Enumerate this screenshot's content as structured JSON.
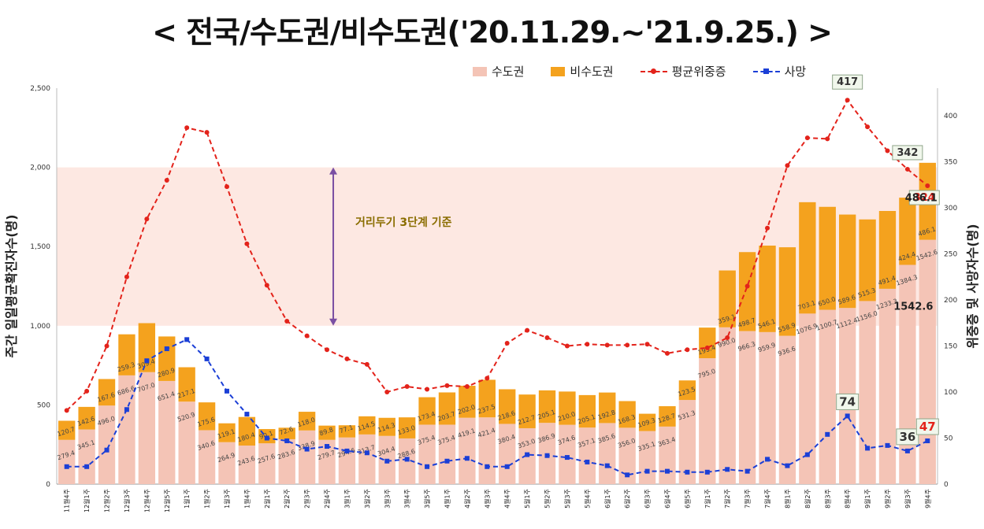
{
  "title": "< 전국/수도권/비수도권('20.11.29.~'21.9.25.) >",
  "colors": {
    "capital": "#f4c4b6",
    "noncapital": "#f4a21e",
    "severe": "#e3231b",
    "death": "#1b3fd6",
    "band": "#fde8e2",
    "arrow": "#7a4fa3",
    "annot": "#8a6d00"
  },
  "chart_data": {
    "type": "bar",
    "ylabel": "주간 일일평균확진자수(명)",
    "y2label": "위중증 및 사망자수(명)",
    "ylim": [
      0,
      2500
    ],
    "y_ticks": [
      "0",
      "500",
      "1,000",
      "1,500",
      "2,000",
      "2,500"
    ],
    "y2lim": [
      0,
      430
    ],
    "y2_ticks": [
      "0",
      "50",
      "100",
      "150",
      "200",
      "250",
      "300",
      "350",
      "400"
    ],
    "categories": [
      "11월4주",
      "12월1주",
      "12월2주",
      "12월3주",
      "12월4주",
      "12월5주",
      "1월1주",
      "1월2주",
      "1월3주",
      "1월4주",
      "2월1주",
      "2월2주",
      "2월3주",
      "2월4주",
      "3월1주",
      "3월2주",
      "3월3주",
      "3월4주",
      "3월5주",
      "4월1주",
      "4월2주",
      "4월3주",
      "4월4주",
      "5월1주",
      "5월2주",
      "5월3주",
      "5월4주",
      "6월1주",
      "6월2주",
      "6월3주",
      "6월4주",
      "6월5주",
      "7월1주",
      "7월2주",
      "7월3주",
      "7월4주",
      "8월1주",
      "8월2주",
      "8월3주",
      "8월4주",
      "9월1주",
      "9월2주",
      "9월3주",
      "9월4주"
    ],
    "series": [
      {
        "name": "수도권",
        "values": [
          279.4,
          345.1,
          496.0,
          686.6,
          707.0,
          651.4,
          520.9,
          340.6,
          264.9,
          243.6,
          257.6,
          283.6,
          338.9,
          279.7,
          294.6,
          313.7,
          304.4,
          288.6,
          375.4,
          375.4,
          419.1,
          421.4,
          380.4,
          353.0,
          386.9,
          374.6,
          357.1,
          385.6,
          356.0,
          335.1,
          363.4,
          531.3,
          795.0,
          990.0,
          966.3,
          959.9,
          936.6,
          1076.9,
          1100.7,
          1112.4,
          1156.0,
          1233.3,
          1384.3,
          1542.6
        ],
        "labels": [
          "279.4",
          "345.1",
          "496.0",
          "686.6",
          "707.0",
          "651.4",
          "520.9",
          "340.6",
          "264.9",
          "243.6",
          "257.6",
          "283.6",
          "338.9",
          "279.7",
          "294.6",
          "313.7",
          "304.4",
          "288.6",
          "375.4",
          "375.4",
          "419.1",
          "421.4",
          "380.4",
          "353.0",
          "386.9",
          "374.6",
          "357.1",
          "385.6",
          "356.0",
          "335.1",
          "363.4",
          "531.3",
          "795.0",
          "990.0",
          "966.3",
          "959.9",
          "936.6",
          "1076.9",
          "1100.7",
          "1112.4",
          "1156.0",
          "1233.3",
          "1384.3",
          "1542.6"
        ]
      },
      {
        "name": "비수도권",
        "values": [
          120.7,
          142.6,
          167.6,
          259.3,
          309.4,
          280.9,
          217.1,
          175.6,
          119.1,
          180.4,
          90.1,
          72.6,
          118.0,
          89.8,
          77.1,
          114.5,
          114.3,
          133.0,
          173.4,
          203.7,
          202.0,
          237.5,
          218.6,
          212.7,
          205.1,
          210.0,
          205.1,
          192.8,
          168.3,
          109.3,
          128.7,
          123.5,
          193.4,
          359.1,
          498.7,
          546.1,
          558.9,
          703.1,
          650.0,
          589.6,
          515.3,
          491.4,
          424.4,
          486.1
        ],
        "labels": [
          "120.7",
          "142.6",
          "167.6",
          "259.3",
          "309.4",
          "280.9",
          "217.1",
          "175.6",
          "119.1",
          "180.4",
          "90.1",
          "72.6",
          "118.0",
          "89.8",
          "77.1",
          "114.5",
          "114.3",
          "133.0",
          "173.4",
          "203.7",
          "202.0",
          "237.5",
          "218.6",
          "212.7",
          "205.1",
          "210.0",
          "205.1",
          "192.8",
          "168.3",
          "109.3",
          "128.7",
          "123.5",
          "193.4",
          "359.1",
          "498.7",
          "546.1",
          "558.9",
          "703.1",
          "650.0",
          "589.6",
          "515.3",
          "491.4",
          "424.4",
          "486.1"
        ]
      },
      {
        "name": "평균위중증",
        "axis": "right",
        "values": [
          80,
          101,
          150,
          225,
          288,
          330,
          387,
          382,
          323,
          261,
          216,
          177,
          161,
          146,
          136,
          130,
          100,
          106,
          103,
          107,
          106,
          115,
          153,
          167,
          159,
          150,
          152,
          151,
          151,
          152,
          142,
          146,
          148,
          159,
          215,
          278,
          346,
          376,
          375,
          417,
          388,
          362,
          342,
          324
        ]
      },
      {
        "name": "사망",
        "axis": "right",
        "values": [
          19,
          19,
          37,
          81,
          134,
          147,
          157,
          136,
          101,
          76,
          50,
          47,
          38,
          41,
          36,
          34,
          25,
          27,
          19,
          25,
          28,
          19,
          19,
          32,
          31,
          29,
          24,
          20,
          10,
          14,
          14,
          13,
          13,
          16,
          14,
          27,
          20,
          32,
          54,
          74,
          39,
          42,
          36,
          47
        ]
      }
    ],
    "callouts": [
      {
        "label": "417",
        "series": "평균위중증",
        "index": 39
      },
      {
        "label": "342",
        "series": "평균위중증",
        "index": 42
      },
      {
        "label": "324",
        "series": "평균위중증",
        "index": 43
      },
      {
        "label": "74",
        "series": "사망",
        "index": 39
      },
      {
        "label": "36",
        "series": "사망",
        "index": 42
      },
      {
        "label": "47",
        "series": "사망",
        "index": 43
      }
    ],
    "band": {
      "from": 1000,
      "to": 2000,
      "label": "거리두기 3단계 기준"
    },
    "legend_position": "top"
  }
}
